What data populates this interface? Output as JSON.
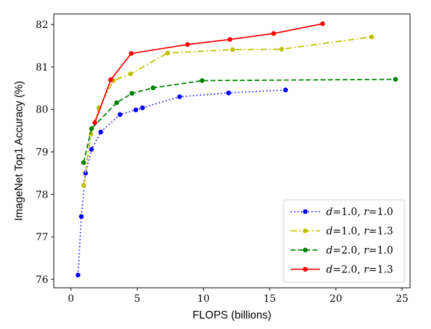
{
  "chart_data": {
    "type": "line",
    "title": "",
    "xlabel": "FLOPS (billions)",
    "ylabel": "ImageNet Top1 Accuracy (%)",
    "xlim": [
      -1.3,
      25.6
    ],
    "ylim": [
      75.8,
      82.25
    ],
    "xticks": [
      0,
      5,
      10,
      15,
      20,
      25
    ],
    "yticks": [
      76,
      77,
      78,
      79,
      80,
      81,
      82
    ],
    "grid": false,
    "legend_position": "lower-right",
    "series": [
      {
        "name": "d=1.0, r=1.0",
        "legend_parts": [
          "d",
          "=1.0, ",
          "r",
          "=1.0"
        ],
        "color": "#0000ff",
        "linestyle": "dotted",
        "x": [
          0.53,
          0.78,
          1.1,
          1.55,
          2.25,
          3.7,
          4.9,
          5.4,
          8.2,
          11.9,
          16.2
        ],
        "y": [
          76.1,
          77.48,
          78.5,
          79.06,
          79.47,
          79.88,
          79.99,
          80.04,
          80.3,
          80.39,
          80.46
        ]
      },
      {
        "name": "d=1.0, r=1.3",
        "legend_parts": [
          "d",
          "=1.0, ",
          "r",
          "=1.3"
        ],
        "color": "#bfbf00",
        "linestyle": "dashdot",
        "x": [
          0.95,
          1.5,
          2.1,
          3.2,
          4.5,
          7.3,
          12.2,
          15.9,
          22.7
        ],
        "y": [
          78.21,
          79.42,
          80.04,
          80.68,
          80.84,
          81.33,
          81.41,
          81.42,
          81.71
        ]
      },
      {
        "name": "d=2.0, r=1.0",
        "legend_parts": [
          "d",
          "=2.0, ",
          "r",
          "=1.0"
        ],
        "color": "#008000",
        "linestyle": "dashed",
        "x": [
          0.95,
          1.55,
          3.45,
          4.6,
          6.2,
          9.9,
          24.5
        ],
        "y": [
          78.75,
          79.55,
          80.16,
          80.38,
          80.51,
          80.68,
          80.71
        ]
      },
      {
        "name": "d=2.0, r=1.3",
        "legend_parts": [
          "d",
          "=2.0, ",
          "r",
          "=1.3"
        ],
        "color": "#ff0000",
        "linestyle": "solid",
        "x": [
          1.8,
          3.0,
          4.55,
          8.8,
          12.0,
          15.3,
          19.0
        ],
        "y": [
          79.69,
          80.7,
          81.32,
          81.53,
          81.65,
          81.79,
          82.02
        ]
      }
    ]
  }
}
